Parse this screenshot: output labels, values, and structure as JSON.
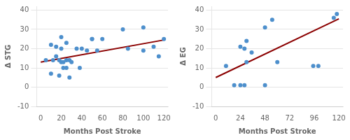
{
  "chart_data": [
    {
      "type": "scatter",
      "y_label": "Δ STG",
      "x_label": "Months Post Stroke",
      "series": [
        {
          "type": "scatter",
          "color": "#4d8fcc",
          "x": [
            5,
            10,
            10,
            12,
            15,
            15,
            18,
            18,
            20,
            20,
            20,
            22,
            22,
            25,
            25,
            25,
            28,
            28,
            30,
            35,
            38,
            40,
            45,
            50,
            50,
            55,
            60,
            80,
            85,
            100,
            100,
            110,
            115,
            120
          ],
          "values": [
            14,
            22,
            7,
            14,
            21,
            16,
            14,
            6,
            13,
            20,
            26,
            13,
            10,
            23,
            14,
            10,
            14,
            5,
            13,
            20,
            10,
            20,
            19,
            25,
            25,
            19,
            25,
            30,
            20,
            31,
            19,
            21,
            16,
            25
          ]
        },
        {
          "type": "line",
          "color": "#8b0000",
          "x": [
            0,
            120
          ],
          "values": [
            13.0,
            24.5
          ]
        }
      ],
      "xlim": [
        -4,
        124
      ],
      "xticks": [
        0,
        20,
        40,
        60,
        80,
        100,
        120
      ],
      "ylim": [
        -10,
        42
      ],
      "yticks": [
        -10,
        0,
        10,
        20,
        30,
        40
      ],
      "grid": "y"
    },
    {
      "type": "scatter",
      "y_label": "Δ EG",
      "x_label": "Months Post Stroke",
      "series": [
        {
          "type": "scatter",
          "color": "#4d8fcc",
          "x": [
            10,
            18,
            24,
            24,
            28,
            28,
            30,
            30,
            35,
            48,
            48,
            55,
            60,
            95,
            100,
            115,
            118
          ],
          "values": [
            11,
            1,
            21,
            1,
            20,
            1,
            13,
            24,
            18,
            31,
            1,
            35,
            13,
            11,
            11,
            36,
            38
          ]
        },
        {
          "type": "line",
          "color": "#8b0000",
          "x": [
            0,
            120
          ],
          "values": [
            5.0,
            35.5
          ]
        }
      ],
      "xlim": [
        -4,
        124
      ],
      "xticks": [
        0,
        24,
        48,
        72,
        96,
        120
      ],
      "ylim": [
        -10,
        42
      ],
      "yticks": [
        -10,
        0,
        10,
        20,
        30,
        40
      ],
      "grid": "y"
    }
  ]
}
